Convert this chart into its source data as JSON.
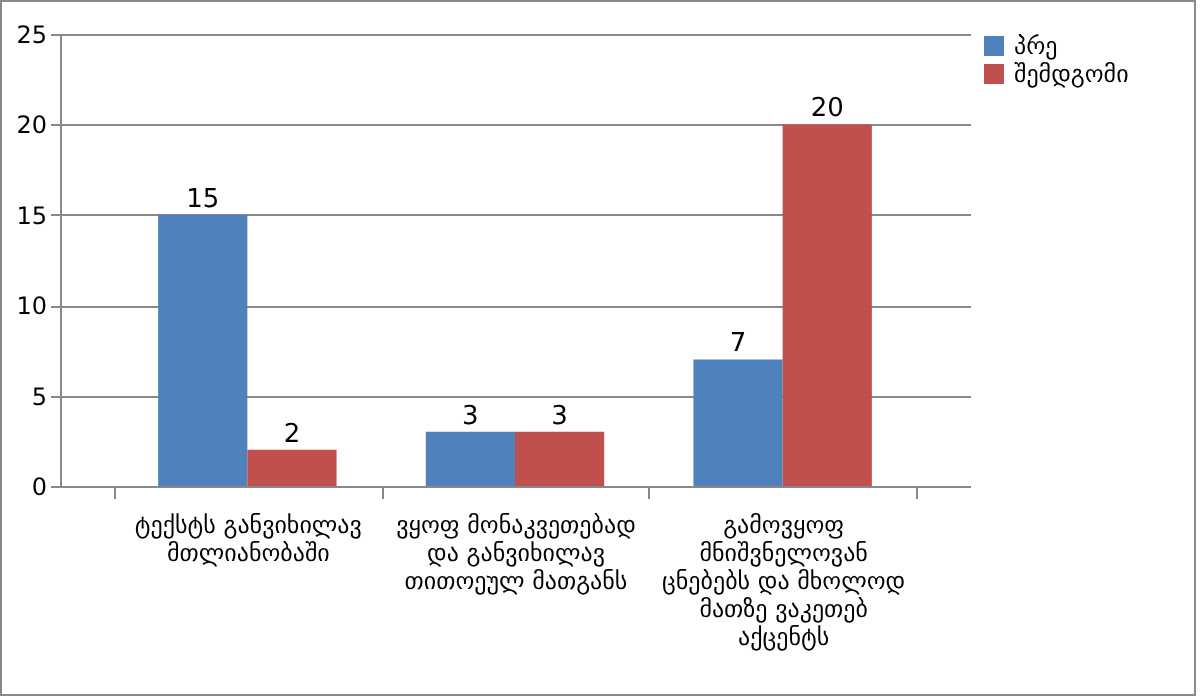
{
  "chart_data": {
    "type": "bar",
    "categories": [
      "ტექსტს განვიხილავ მთლიანობაში",
      "ვყოფ მონაკვეთებად და განვიხილავ თითოეულ მათგანს",
      "გამოვყოფ მნიშვნელოვან ცნებებს და მხოლოდ მათზე ვაკეთებ აქცენტს"
    ],
    "series": [
      {
        "name": "პრე",
        "color": "#4f81bd",
        "values": [
          15,
          3,
          7
        ]
      },
      {
        "name": "შემდგომი",
        "color": "#c0504d",
        "values": [
          2,
          3,
          20
        ]
      }
    ],
    "ylim": [
      0,
      25
    ],
    "yticks": [
      0,
      5,
      10,
      15,
      20,
      25
    ],
    "grid": "y",
    "legend": "right",
    "data_labels": true
  }
}
